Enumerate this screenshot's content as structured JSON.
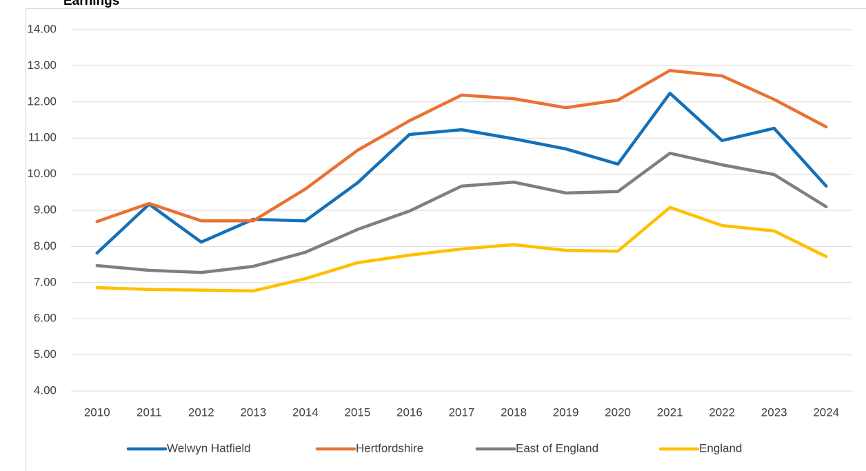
{
  "chart_data": {
    "type": "line",
    "title": "Earnings",
    "categories": [
      "2010",
      "2011",
      "2012",
      "2013",
      "2014",
      "2015",
      "2016",
      "2017",
      "2018",
      "2019",
      "2020",
      "2021",
      "2022",
      "2023",
      "2024"
    ],
    "series": [
      {
        "name": "Welwyn Hatfield",
        "color": "#1470b8",
        "values": [
          7.82,
          9.17,
          8.12,
          8.75,
          8.71,
          9.76,
          11.1,
          11.23,
          10.98,
          10.7,
          10.28,
          12.24,
          10.93,
          11.27,
          9.67
        ]
      },
      {
        "name": "Hertfordshire",
        "color": "#e97132",
        "values": [
          8.69,
          9.19,
          8.71,
          8.71,
          9.59,
          10.66,
          11.48,
          12.19,
          12.09,
          11.84,
          12.05,
          12.87,
          12.72,
          12.07,
          11.31
        ]
      },
      {
        "name": "East of England",
        "color": "#7f7f7f",
        "values": [
          7.47,
          7.34,
          7.28,
          7.45,
          7.84,
          8.47,
          8.98,
          9.67,
          9.78,
          9.48,
          9.52,
          10.58,
          10.26,
          9.99,
          9.1
        ]
      },
      {
        "name": "England",
        "color": "#ffc000",
        "values": [
          6.86,
          6.81,
          6.79,
          6.77,
          7.11,
          7.55,
          7.76,
          7.93,
          8.05,
          7.89,
          7.87,
          9.08,
          8.58,
          8.43,
          7.72
        ]
      }
    ],
    "ylim": [
      4,
      14
    ],
    "yticks": [
      {
        "value": 4,
        "label": "4.00"
      },
      {
        "value": 5,
        "label": "5.00"
      },
      {
        "value": 6,
        "label": "6.00"
      },
      {
        "value": 7,
        "label": "7.00"
      },
      {
        "value": 8,
        "label": "8.00"
      },
      {
        "value": 9,
        "label": "9.00"
      },
      {
        "value": 10,
        "label": "10.00"
      },
      {
        "value": 11,
        "label": "11.00"
      },
      {
        "value": 12,
        "label": "12.00"
      },
      {
        "value": 13,
        "label": "13.00"
      },
      {
        "value": 14,
        "label": "14.00"
      }
    ],
    "grid": true,
    "legend": "bottom"
  }
}
